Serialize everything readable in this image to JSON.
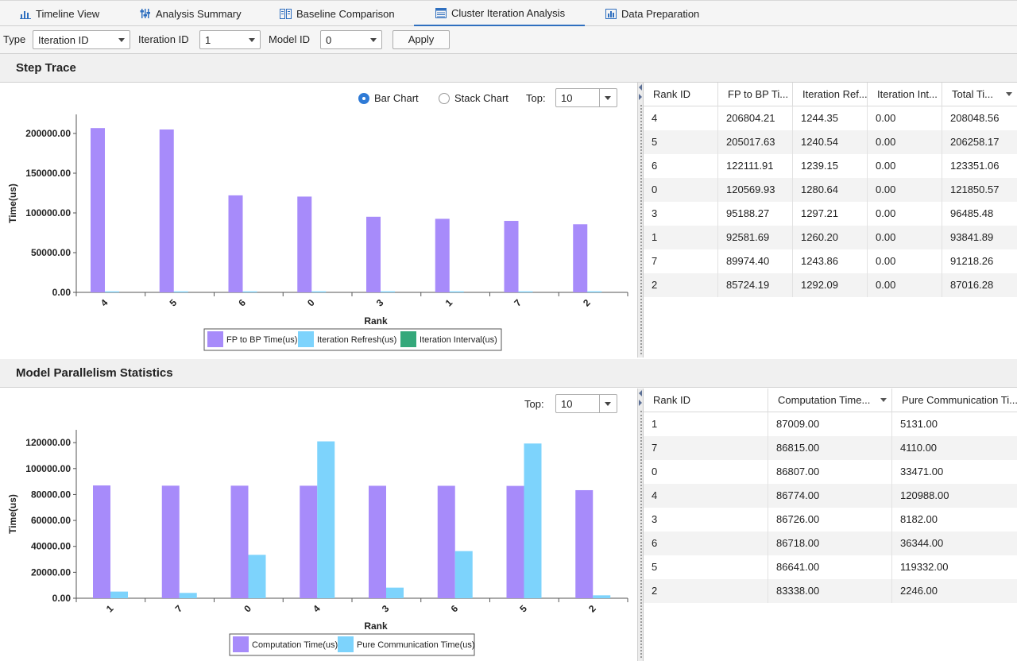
{
  "tabs": [
    {
      "label": "Timeline View",
      "icon": "bar-chart-icon",
      "active": false
    },
    {
      "label": "Analysis Summary",
      "icon": "sliders-icon",
      "active": false
    },
    {
      "label": "Baseline Comparison",
      "icon": "compare-icon",
      "active": false
    },
    {
      "label": "Cluster Iteration Analysis",
      "icon": "table-icon",
      "active": true
    },
    {
      "label": "Data Preparation",
      "icon": "bar-chart-icon",
      "active": false
    }
  ],
  "filters": {
    "type_label": "Type",
    "type_value": "Iteration ID",
    "iteration_label": "Iteration ID",
    "iteration_value": "1",
    "model_label": "Model ID",
    "model_value": "0",
    "apply_label": "Apply"
  },
  "step_trace": {
    "title": "Step Trace",
    "bar_chart_label": "Bar Chart",
    "stack_chart_label": "Stack Chart",
    "selected_mode": "Bar Chart",
    "top_label": "Top:",
    "top_value": "10",
    "table": {
      "columns": [
        "Rank ID",
        "FP to BP Ti...",
        "Iteration Ref...",
        "Iteration Int...",
        "Total Ti..."
      ],
      "rows": [
        [
          "4",
          "206804.21",
          "1244.35",
          "0.00",
          "208048.56"
        ],
        [
          "5",
          "205017.63",
          "1240.54",
          "0.00",
          "206258.17"
        ],
        [
          "6",
          "122111.91",
          "1239.15",
          "0.00",
          "123351.06"
        ],
        [
          "0",
          "120569.93",
          "1280.64",
          "0.00",
          "121850.57"
        ],
        [
          "3",
          "95188.27",
          "1297.21",
          "0.00",
          "96485.48"
        ],
        [
          "1",
          "92581.69",
          "1260.20",
          "0.00",
          "93841.89"
        ],
        [
          "7",
          "89974.40",
          "1243.86",
          "0.00",
          "91218.26"
        ],
        [
          "2",
          "85724.19",
          "1292.09",
          "0.00",
          "87016.28"
        ]
      ]
    }
  },
  "model_parallelism": {
    "title": "Model Parallelism Statistics",
    "top_label": "Top:",
    "top_value": "10",
    "table": {
      "columns": [
        "Rank ID",
        "Computation Time...",
        "Pure Communication Ti..."
      ],
      "rows": [
        [
          "1",
          "87009.00",
          "5131.00"
        ],
        [
          "7",
          "86815.00",
          "4110.00"
        ],
        [
          "0",
          "86807.00",
          "33471.00"
        ],
        [
          "4",
          "86774.00",
          "120988.00"
        ],
        [
          "3",
          "86726.00",
          "8182.00"
        ],
        [
          "6",
          "86718.00",
          "36344.00"
        ],
        [
          "5",
          "86641.00",
          "119332.00"
        ],
        [
          "2",
          "83338.00",
          "2246.00"
        ]
      ]
    }
  },
  "chart_data": [
    {
      "type": "bar",
      "xlabel": "Rank",
      "ylabel": "Time(us)",
      "categories": [
        "4",
        "5",
        "6",
        "0",
        "3",
        "1",
        "7",
        "2"
      ],
      "ylim": [
        0,
        210000
      ],
      "yticks": [
        "0.00",
        "50000.00",
        "100000.00",
        "150000.00",
        "200000.00"
      ],
      "legend_position": "bottom",
      "series": [
        {
          "name": "FP to BP Time(us)",
          "color": "#a78bfa",
          "values": [
            206804.21,
            205017.63,
            122111.91,
            120569.93,
            95188.27,
            92581.69,
            89974.4,
            85724.19
          ]
        },
        {
          "name": "Iteration Refresh(us)",
          "color": "#7dd3fc",
          "values": [
            1244.35,
            1240.54,
            1239.15,
            1280.64,
            1297.21,
            1260.2,
            1243.86,
            1292.09
          ]
        },
        {
          "name": "Iteration Interval(us)",
          "color": "#34a87a",
          "values": [
            0,
            0,
            0,
            0,
            0,
            0,
            0,
            0
          ]
        }
      ]
    },
    {
      "type": "bar",
      "xlabel": "Rank",
      "ylabel": "Time(us)",
      "categories": [
        "1",
        "7",
        "0",
        "4",
        "3",
        "6",
        "5",
        "2"
      ],
      "ylim": [
        0,
        125000
      ],
      "yticks": [
        "0.00",
        "20000.00",
        "40000.00",
        "60000.00",
        "80000.00",
        "100000.00",
        "120000.00"
      ],
      "legend_position": "bottom",
      "series": [
        {
          "name": "Computation Time(us)",
          "color": "#a78bfa",
          "values": [
            87009,
            86815,
            86807,
            86774,
            86726,
            86718,
            86641,
            83338
          ]
        },
        {
          "name": "Pure Communication Time(us)",
          "color": "#7dd3fc",
          "values": [
            5131,
            4110,
            33471,
            120988,
            8182,
            36344,
            119332,
            2246
          ]
        }
      ]
    }
  ]
}
